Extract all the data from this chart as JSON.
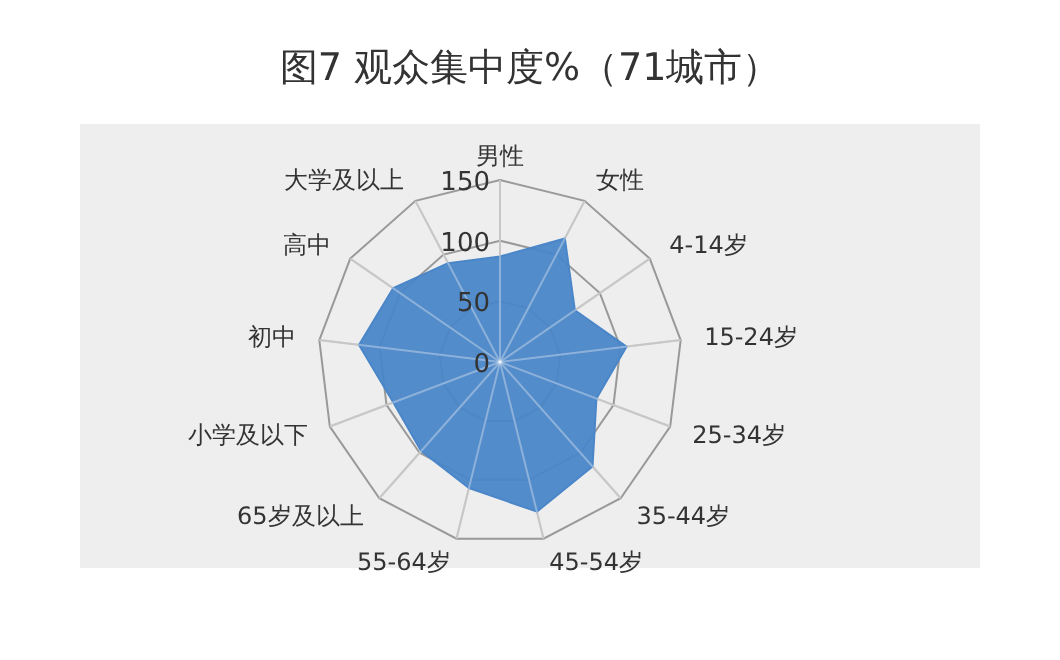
{
  "chart_data": {
    "type": "radar",
    "title": "图7 观众集中度%（71城市）",
    "categories": [
      "男性",
      "女性",
      "4-14岁",
      "15-24岁",
      "25-34岁",
      "35-44岁",
      "45-54岁",
      "55-64岁",
      "65岁及以上",
      "小学及以下",
      "初中",
      "高中",
      "大学及以上"
    ],
    "series": [
      {
        "color": "#4a86c8",
        "values": [
          87,
          115,
          75,
          105,
          85,
          115,
          127,
          107,
          98,
          94,
          117,
          107,
          92
        ]
      }
    ],
    "ylim": [
      0,
      150
    ],
    "yticks": [
      0,
      50,
      100,
      150
    ],
    "grid": true
  }
}
